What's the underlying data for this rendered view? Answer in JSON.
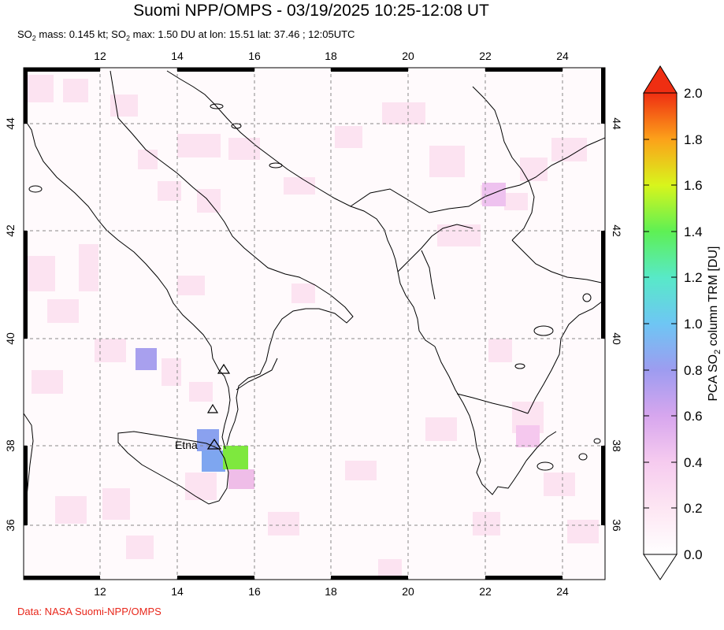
{
  "header": {
    "title": "Suomi NPP/OMPS - 03/19/2025 10:25-12:08 UT",
    "subtitle_part1": "SO",
    "subtitle_sub1": "2",
    "subtitle_part2": " mass: 0.145 kt; SO",
    "subtitle_sub2": "2",
    "subtitle_part3": " max: 1.50 DU at lon: 15.51 lat: 37.46 ; 12:05UTC"
  },
  "map": {
    "lon_ticks": [
      "12",
      "14",
      "16",
      "18",
      "20",
      "22",
      "24"
    ],
    "lat_ticks": [
      "44",
      "42",
      "40",
      "38",
      "36"
    ],
    "volcano_label": "Etna",
    "land_color": "#fffafc",
    "coast_color": "#000000",
    "grid_color": "#777777"
  },
  "colorbar": {
    "labels": [
      "2.0",
      "1.8",
      "1.6",
      "1.4",
      "1.2",
      "1.0",
      "0.8",
      "0.6",
      "0.4",
      "0.2",
      "0.0"
    ],
    "title_part1": "PCA SO",
    "title_sub": "2",
    "title_part2": " column TRM [DU]",
    "max": 2.0,
    "min": 0.0
  },
  "footer": {
    "credit": "Data: NASA Suomi-NPP/OMPS"
  }
}
